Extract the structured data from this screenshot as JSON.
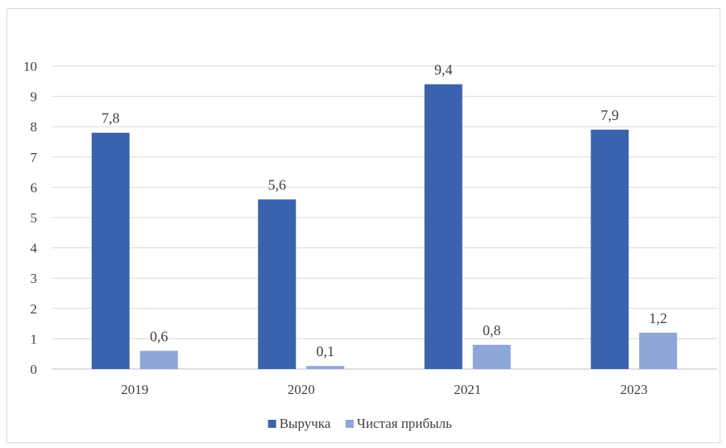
{
  "chart_data": {
    "type": "bar",
    "categories": [
      "2019",
      "2020",
      "2021",
      "2023"
    ],
    "series": [
      {
        "name": "Выручка",
        "values": [
          7.8,
          5.6,
          9.4,
          7.9
        ],
        "labels": [
          "7,8",
          "5,6",
          "9,4",
          "7,9"
        ],
        "color": "#3a62ad"
      },
      {
        "name": "Чистая прибыль",
        "values": [
          0.6,
          0.1,
          0.8,
          1.2
        ],
        "labels": [
          "0,6",
          "0,1",
          "0,8",
          "1,2"
        ],
        "color": "#8ea6d8"
      }
    ],
    "ylim": [
      0,
      10
    ],
    "yticks": [
      "0",
      "1",
      "2",
      "3",
      "4",
      "5",
      "6",
      "7",
      "8",
      "9",
      "10"
    ],
    "grid": true,
    "gridColor": "#d9d9d9",
    "legend": "bottom"
  }
}
